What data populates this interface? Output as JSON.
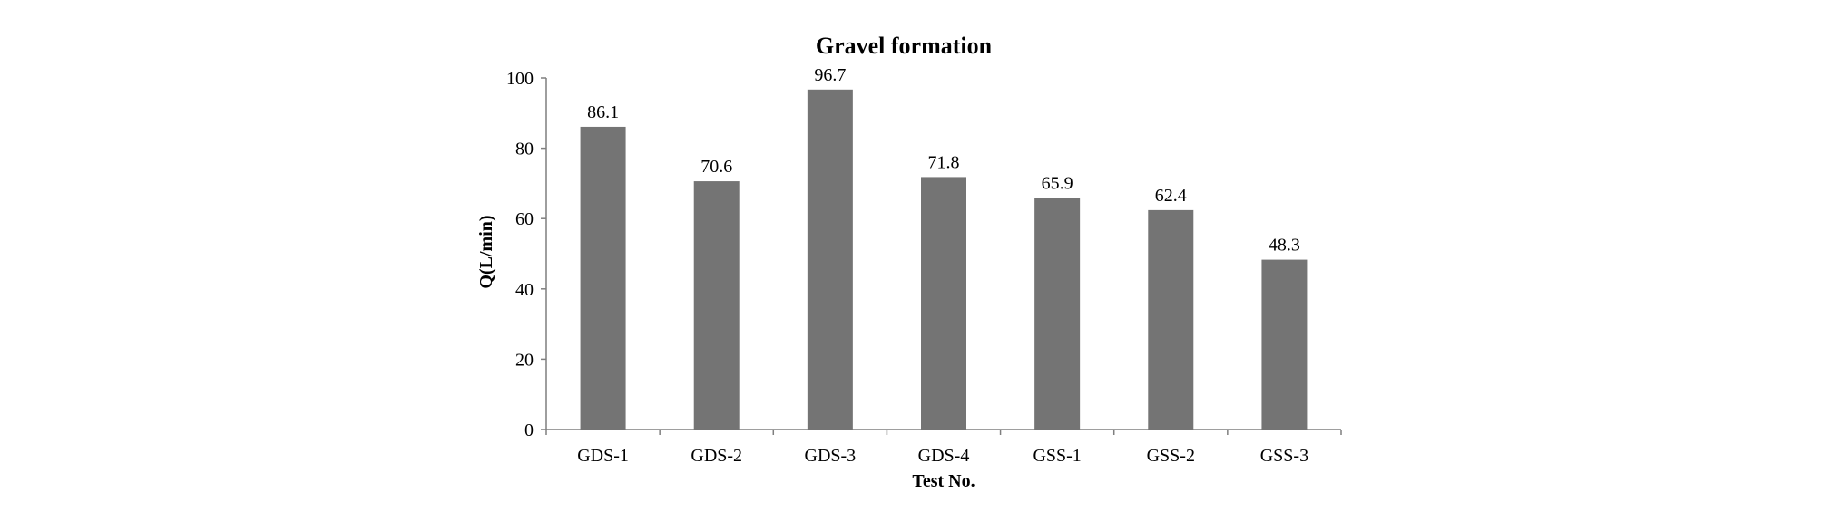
{
  "chart_data": {
    "type": "bar",
    "title": "Gravel formation",
    "xlabel": "Test No.",
    "ylabel": "Q(L/min)",
    "categories": [
      "GDS-1",
      "GDS-2",
      "GDS-3",
      "GDS-4",
      "GSS-1",
      "GSS-2",
      "GSS-3"
    ],
    "values": [
      86.1,
      70.6,
      96.7,
      71.8,
      65.9,
      62.4,
      48.3
    ],
    "data_labels": [
      "86.1",
      "70.6",
      "96.7",
      "71.8",
      "65.9",
      "62.4",
      "48.3"
    ],
    "ylim": [
      0,
      100
    ],
    "yticks": [
      "0",
      "20",
      "40",
      "60",
      "80",
      "100"
    ],
    "grid": false,
    "legend": "none",
    "bar_color": "#747474"
  }
}
